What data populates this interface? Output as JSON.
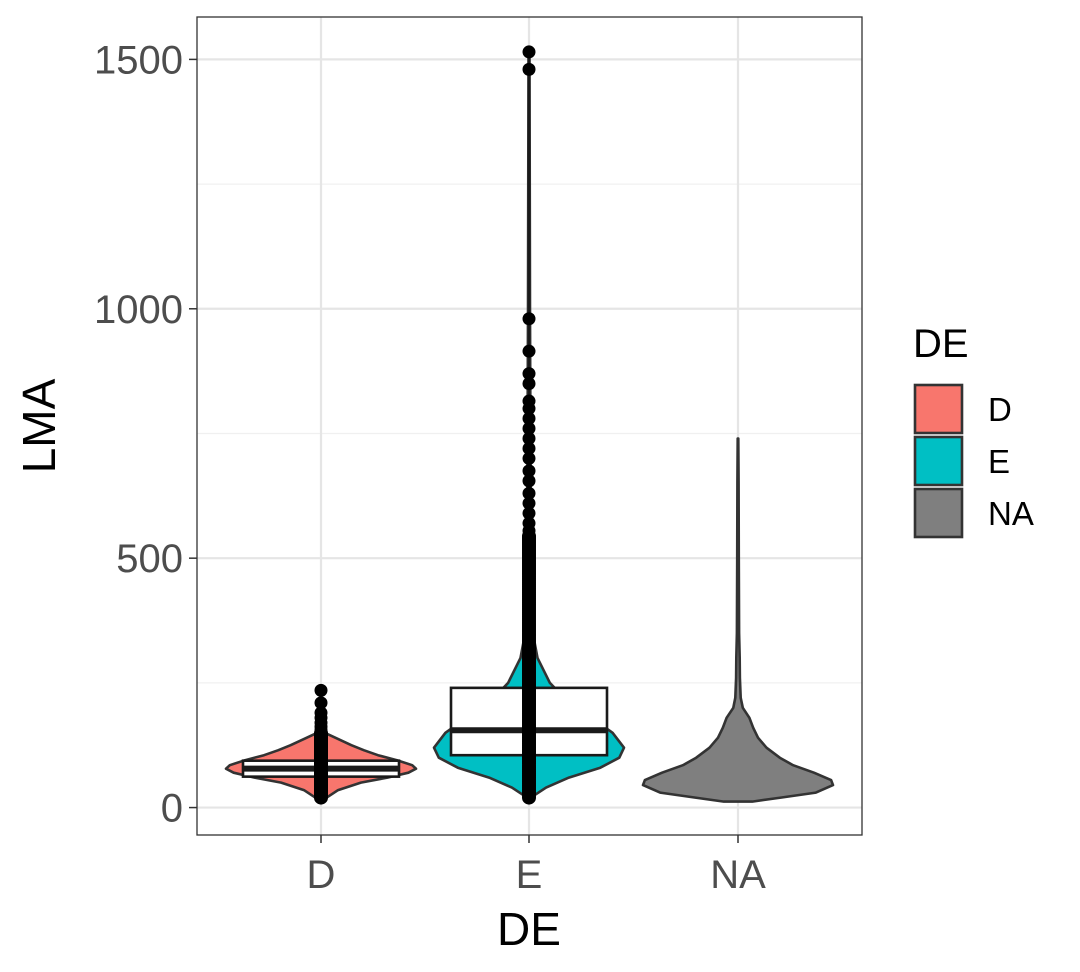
{
  "chart_data": {
    "type": "violin+boxplot",
    "xlabel": "DE",
    "ylabel": "LMA",
    "categories": [
      "D",
      "E",
      "NA"
    ],
    "ylim": [
      -55,
      1585
    ],
    "yticks": [
      0,
      500,
      1000,
      1500
    ],
    "grid": true,
    "legend": {
      "title": "DE",
      "position": "right",
      "entries": [
        {
          "label": "D",
          "color": "#F8766D"
        },
        {
          "label": "E",
          "color": "#00BFC4"
        },
        {
          "label": "NA",
          "color": "#7F7F7F"
        }
      ]
    },
    "series": [
      {
        "category": "D",
        "color": "#F8766D",
        "violin": {
          "ymin": 20,
          "ymax": 150,
          "profile": [
            [
              20,
              0.06
            ],
            [
              35,
              0.18
            ],
            [
              50,
              0.42
            ],
            [
              60,
              0.7
            ],
            [
              70,
              0.92
            ],
            [
              78,
              1.0
            ],
            [
              85,
              0.96
            ],
            [
              95,
              0.8
            ],
            [
              105,
              0.6
            ],
            [
              115,
              0.45
            ],
            [
              125,
              0.32
            ],
            [
              140,
              0.15
            ],
            [
              150,
              0.04
            ]
          ]
        },
        "box": {
          "lower": 62,
          "median": 78,
          "upper": 94
        },
        "outliers": [
          155,
          162,
          170,
          180,
          190,
          210,
          235
        ]
      },
      {
        "category": "E",
        "color": "#00BFC4",
        "violin": {
          "ymin": 20,
          "ymax": 1510,
          "profile": [
            [
              20,
              0.02
            ],
            [
              40,
              0.18
            ],
            [
              60,
              0.42
            ],
            [
              80,
              0.75
            ],
            [
              100,
              0.95
            ],
            [
              120,
              1.0
            ],
            [
              150,
              0.88
            ],
            [
              180,
              0.66
            ],
            [
              210,
              0.42
            ],
            [
              250,
              0.22
            ],
            [
              300,
              0.09
            ],
            [
              350,
              0.04
            ],
            [
              500,
              0.02
            ],
            [
              1000,
              0.01
            ],
            [
              1510,
              0.005
            ]
          ]
        },
        "box": {
          "lower": 105,
          "median": 155,
          "upper": 240
        },
        "outliers": [
          1515,
          1480,
          980,
          915,
          870,
          850,
          815,
          800,
          780,
          760,
          740,
          720,
          700,
          675,
          655,
          630,
          610,
          590,
          570,
          555
        ]
      },
      {
        "category": "NA",
        "color": "#7F7F7F",
        "violin": {
          "ymin": 12,
          "ymax": 740,
          "profile": [
            [
              12,
              0.15
            ],
            [
              20,
              0.45
            ],
            [
              30,
              0.82
            ],
            [
              45,
              1.0
            ],
            [
              55,
              0.98
            ],
            [
              70,
              0.8
            ],
            [
              85,
              0.58
            ],
            [
              100,
              0.44
            ],
            [
              120,
              0.3
            ],
            [
              140,
              0.21
            ],
            [
              160,
              0.16
            ],
            [
              180,
              0.12
            ],
            [
              200,
              0.05
            ],
            [
              220,
              0.028
            ],
            [
              260,
              0.02
            ],
            [
              300,
              0.018
            ],
            [
              350,
              0.012
            ],
            [
              500,
              0.008
            ],
            [
              650,
              0.006
            ],
            [
              740,
              0.003
            ]
          ]
        }
      }
    ]
  }
}
